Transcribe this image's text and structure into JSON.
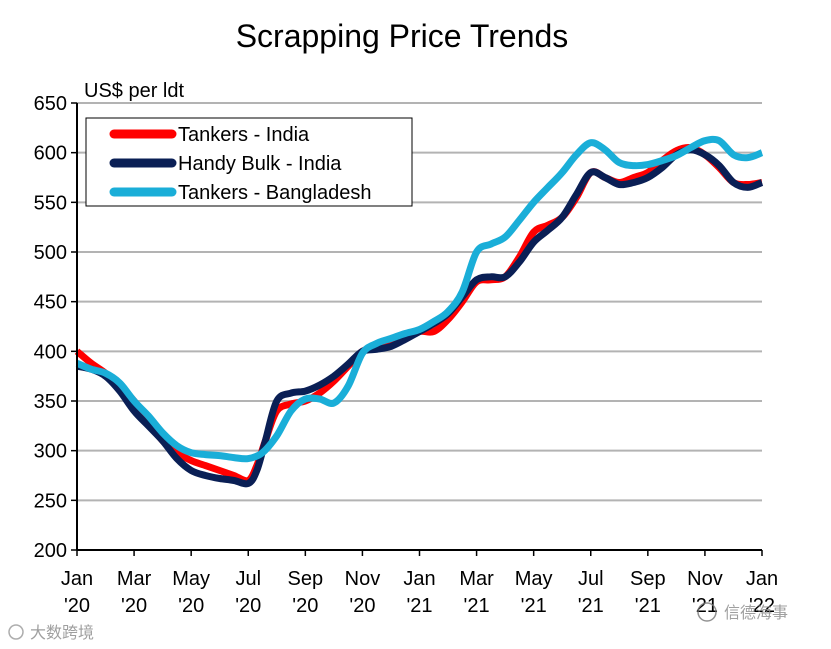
{
  "chart_data": {
    "type": "line",
    "title": "Scrapping Price Trends",
    "ylabel": "US$ per ldt",
    "xlabel": "",
    "ylim": [
      200,
      650
    ],
    "yticks": [
      200,
      250,
      300,
      350,
      400,
      450,
      500,
      550,
      600,
      650
    ],
    "xlim": [
      0,
      24
    ],
    "xticks": [
      {
        "pos": 0,
        "l1": "Jan",
        "l2": "'20"
      },
      {
        "pos": 2,
        "l1": "Mar",
        "l2": "'20"
      },
      {
        "pos": 4,
        "l1": "May",
        "l2": "'20"
      },
      {
        "pos": 6,
        "l1": "Jul",
        "l2": "'20"
      },
      {
        "pos": 8,
        "l1": "Sep",
        "l2": "'20"
      },
      {
        "pos": 10,
        "l1": "Nov",
        "l2": "'20"
      },
      {
        "pos": 12,
        "l1": "Jan",
        "l2": "'21"
      },
      {
        "pos": 14,
        "l1": "Mar",
        "l2": "'21"
      },
      {
        "pos": 16,
        "l1": "May",
        "l2": "'21"
      },
      {
        "pos": 18,
        "l1": "Jul",
        "l2": "'21"
      },
      {
        "pos": 20,
        "l1": "Sep",
        "l2": "'21"
      },
      {
        "pos": 22,
        "l1": "Nov",
        "l2": "'21"
      },
      {
        "pos": 24,
        "l1": "Jan",
        "l2": "'22"
      }
    ],
    "grid": true,
    "legend_position": "top-left",
    "series": [
      {
        "name": "Tankers - India",
        "color": "#ff0000",
        "x": [
          0,
          0.5,
          1,
          1.5,
          2,
          2.5,
          3,
          3.5,
          4,
          4.5,
          5,
          5.5,
          6,
          6.3,
          6.6,
          7,
          7.5,
          8,
          8.5,
          9,
          9.5,
          10,
          10.5,
          11,
          11.5,
          12,
          12.5,
          13,
          13.5,
          14,
          14.5,
          15,
          15.5,
          16,
          16.5,
          17,
          17.5,
          18,
          18.5,
          19,
          19.5,
          20,
          20.5,
          21,
          21.5,
          22,
          22.5,
          23,
          23.5,
          24
        ],
        "values": [
          400,
          388,
          378,
          365,
          350,
          330,
          310,
          298,
          290,
          285,
          280,
          275,
          270,
          285,
          310,
          340,
          347,
          350,
          358,
          370,
          385,
          400,
          405,
          408,
          413,
          420,
          420,
          432,
          450,
          470,
          472,
          475,
          495,
          520,
          527,
          535,
          555,
          580,
          575,
          570,
          575,
          580,
          592,
          602,
          605,
          598,
          585,
          570,
          568,
          570
        ]
      },
      {
        "name": "Handy Bulk - India",
        "color": "#0a1f55",
        "x": [
          0,
          0.5,
          1,
          1.5,
          2,
          2.5,
          3,
          3.5,
          4,
          4.5,
          5,
          5.5,
          6,
          6.3,
          6.6,
          7,
          7.5,
          8,
          8.5,
          9,
          9.5,
          10,
          10.5,
          11,
          11.5,
          12,
          12.5,
          13,
          13.5,
          14,
          14.5,
          15,
          15.5,
          16,
          16.5,
          17,
          17.5,
          18,
          18.5,
          19,
          19.5,
          20,
          20.5,
          21,
          21.5,
          22,
          22.5,
          23,
          23.5,
          24
        ],
        "values": [
          385,
          382,
          375,
          360,
          340,
          325,
          310,
          292,
          280,
          275,
          272,
          270,
          267,
          280,
          310,
          350,
          358,
          360,
          366,
          375,
          387,
          400,
          402,
          405,
          412,
          420,
          428,
          438,
          455,
          472,
          475,
          475,
          490,
          510,
          522,
          535,
          558,
          580,
          575,
          568,
          570,
          575,
          585,
          598,
          603,
          598,
          587,
          570,
          565,
          570
        ]
      },
      {
        "name": "Tankers - Bangladesh",
        "color": "#1aaed8",
        "x": [
          0,
          0.5,
          1,
          1.5,
          2,
          2.5,
          3,
          3.5,
          4,
          4.5,
          5,
          5.5,
          6,
          6.5,
          7,
          7.5,
          8,
          8.5,
          9,
          9.5,
          10,
          10.5,
          11,
          11.5,
          12,
          12.5,
          13,
          13.5,
          14,
          14.5,
          15,
          15.5,
          16,
          16.5,
          17,
          17.5,
          18,
          18.5,
          19,
          19.5,
          20,
          20.5,
          21,
          21.5,
          22,
          22.5,
          23,
          23.5,
          24
        ],
        "values": [
          388,
          382,
          378,
          368,
          350,
          335,
          318,
          305,
          298,
          296,
          295,
          293,
          292,
          298,
          315,
          340,
          352,
          352,
          348,
          365,
          398,
          408,
          413,
          418,
          422,
          430,
          440,
          460,
          500,
          508,
          515,
          532,
          550,
          565,
          580,
          598,
          610,
          603,
          590,
          587,
          588,
          592,
          597,
          605,
          612,
          612,
          598,
          595,
          600
        ]
      }
    ]
  },
  "watermark": {
    "left_text": "大数跨境",
    "right_text": "信德海事"
  }
}
